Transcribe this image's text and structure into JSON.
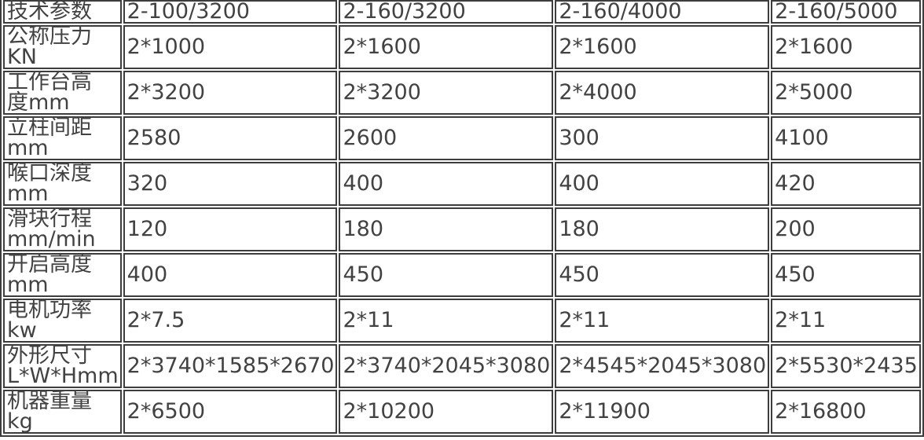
{
  "colors": {
    "background": "#ffffff",
    "border": "#3d3d3d",
    "text": "#424242"
  },
  "table": {
    "header": {
      "param_label": "技术参数",
      "models": [
        "2-100/3200",
        "2-160/3200",
        "2-160/4000",
        "2-160/5000"
      ]
    },
    "rows": [
      {
        "label_line1": "公称压力",
        "label_line2": "KN",
        "values": [
          "2*1000",
          "2*1600",
          "2*1600",
          "2*1600"
        ]
      },
      {
        "label_line1": "工作台高",
        "label_line2": "度mm",
        "values": [
          "2*3200",
          "2*3200",
          "2*4000",
          "2*5000"
        ]
      },
      {
        "label_line1": "立柱间距",
        "label_line2": "mm",
        "values": [
          "2580",
          "2600",
          "300",
          "4100"
        ]
      },
      {
        "label_line1": "喉口深度",
        "label_line2": "mm",
        "values": [
          "320",
          "400",
          "400",
          "420"
        ]
      },
      {
        "label_line1": "滑块行程",
        "label_line2": "mm/min",
        "values": [
          "120",
          "180",
          "180",
          "200"
        ]
      },
      {
        "label_line1": "开启高度",
        "label_line2": "mm",
        "values": [
          "400",
          "450",
          "450",
          "450"
        ]
      },
      {
        "label_line1": "电机功率",
        "label_line2": "kw",
        "values": [
          "2*7.5",
          "2*11",
          "2*11",
          "2*11"
        ]
      },
      {
        "label_line1": "外形尺寸",
        "label_line2": "L*W*Hmm",
        "values": [
          "2*3740*1585*2670",
          "2*3740*2045*3080",
          "2*4545*2045*3080",
          "2*5530*2435"
        ]
      },
      {
        "label_line1": "机器重量",
        "label_line2": "kg",
        "values": [
          "2*6500",
          "2*10200",
          "2*11900",
          "2*16800"
        ]
      }
    ]
  }
}
